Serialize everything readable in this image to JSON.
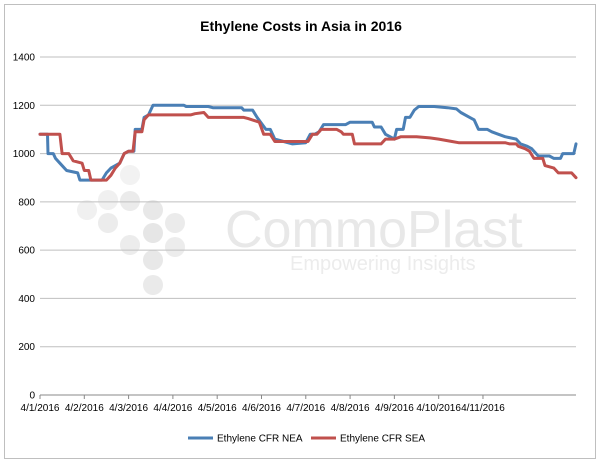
{
  "chart_data": {
    "type": "line",
    "title": "Ethylene Costs in Asia in 2016",
    "xlabel": "",
    "ylabel": "",
    "ylim": [
      0,
      1400
    ],
    "yticks": [
      0,
      200,
      400,
      600,
      800,
      1000,
      1200,
      1400
    ],
    "x_tick_labels": [
      "4/1/2016",
      "4/2/2016",
      "4/3/2016",
      "4/4/2016",
      "4/5/2016",
      "4/6/2016",
      "4/7/2016",
      "4/8/2016",
      "4/9/2016",
      "4/10/2016",
      "4/11/2016"
    ],
    "grid": true,
    "legend_position": "bottom",
    "series": [
      {
        "name": "Ethylene CFR NEA",
        "color": "#4a7fb5",
        "points": [
          [
            0,
            1080
          ],
          [
            0.1,
            1080
          ],
          [
            0.15,
            1080
          ],
          [
            0.17,
            1080
          ],
          [
            0.18,
            1000
          ],
          [
            0.3,
            1000
          ],
          [
            0.35,
            980
          ],
          [
            0.45,
            960
          ],
          [
            0.6,
            930
          ],
          [
            0.85,
            920
          ],
          [
            0.9,
            890
          ],
          [
            1.2,
            890
          ],
          [
            1.4,
            890
          ],
          [
            1.5,
            920
          ],
          [
            1.6,
            940
          ],
          [
            1.8,
            960
          ],
          [
            1.9,
            1000
          ],
          [
            2.0,
            1010
          ],
          [
            2.12,
            1010
          ],
          [
            2.15,
            1100
          ],
          [
            2.3,
            1100
          ],
          [
            2.35,
            1150
          ],
          [
            2.45,
            1160
          ],
          [
            2.55,
            1200
          ],
          [
            3.0,
            1200
          ],
          [
            3.25,
            1200
          ],
          [
            3.3,
            1195
          ],
          [
            3.8,
            1195
          ],
          [
            3.9,
            1190
          ],
          [
            4.55,
            1190
          ],
          [
            4.6,
            1180
          ],
          [
            4.8,
            1180
          ],
          [
            4.9,
            1150
          ],
          [
            5.1,
            1100
          ],
          [
            5.2,
            1100
          ],
          [
            5.3,
            1060
          ],
          [
            5.5,
            1050
          ],
          [
            5.7,
            1040
          ],
          [
            6.0,
            1045
          ],
          [
            6.1,
            1080
          ],
          [
            6.2,
            1080
          ],
          [
            6.3,
            1090
          ],
          [
            6.4,
            1120
          ],
          [
            6.9,
            1120
          ],
          [
            7.0,
            1130
          ],
          [
            7.5,
            1130
          ],
          [
            7.55,
            1110
          ],
          [
            7.7,
            1110
          ],
          [
            7.8,
            1080
          ],
          [
            7.9,
            1070
          ],
          [
            8.0,
            1060
          ],
          [
            8.05,
            1100
          ],
          [
            8.2,
            1100
          ],
          [
            8.25,
            1150
          ],
          [
            8.35,
            1150
          ],
          [
            8.45,
            1180
          ],
          [
            8.55,
            1195
          ],
          [
            8.9,
            1195
          ],
          [
            9.2,
            1190
          ],
          [
            9.4,
            1185
          ],
          [
            9.5,
            1170
          ],
          [
            9.7,
            1150
          ],
          [
            9.8,
            1140
          ],
          [
            9.9,
            1100
          ],
          [
            10.1,
            1100
          ],
          [
            10.2,
            1090
          ],
          [
            10.35,
            1080
          ],
          [
            10.5,
            1070
          ],
          [
            10.75,
            1060
          ],
          [
            10.85,
            1040
          ],
          [
            11.0,
            1030
          ],
          [
            11.1,
            1020
          ],
          [
            11.2,
            1000
          ],
          [
            11.25,
            990
          ],
          [
            11.5,
            990
          ],
          [
            11.6,
            980
          ],
          [
            11.75,
            980
          ],
          [
            11.8,
            1000
          ],
          [
            12.05,
            1000
          ],
          [
            12.1,
            1040
          ]
        ]
      },
      {
        "name": "Ethylene CFR SEA",
        "color": "#c0504d",
        "points": [
          [
            0,
            1080
          ],
          [
            0.45,
            1080
          ],
          [
            0.5,
            1000
          ],
          [
            0.65,
            1000
          ],
          [
            0.75,
            970
          ],
          [
            0.95,
            960
          ],
          [
            1.0,
            930
          ],
          [
            1.1,
            930
          ],
          [
            1.15,
            890
          ],
          [
            1.35,
            890
          ],
          [
            1.5,
            890
          ],
          [
            1.6,
            910
          ],
          [
            1.7,
            940
          ],
          [
            1.8,
            960
          ],
          [
            1.9,
            1000
          ],
          [
            2.0,
            1010
          ],
          [
            2.1,
            1010
          ],
          [
            2.15,
            1090
          ],
          [
            2.3,
            1090
          ],
          [
            2.35,
            1140
          ],
          [
            2.45,
            1160
          ],
          [
            3.4,
            1160
          ],
          [
            3.5,
            1165
          ],
          [
            3.7,
            1170
          ],
          [
            3.8,
            1150
          ],
          [
            4.6,
            1150
          ],
          [
            4.7,
            1145
          ],
          [
            4.95,
            1130
          ],
          [
            5.05,
            1080
          ],
          [
            5.2,
            1080
          ],
          [
            5.3,
            1050
          ],
          [
            5.7,
            1050
          ],
          [
            6.05,
            1050
          ],
          [
            6.15,
            1080
          ],
          [
            6.25,
            1080
          ],
          [
            6.3,
            1090
          ],
          [
            6.35,
            1100
          ],
          [
            6.7,
            1100
          ],
          [
            6.8,
            1090
          ],
          [
            6.85,
            1080
          ],
          [
            7.05,
            1080
          ],
          [
            7.1,
            1040
          ],
          [
            7.7,
            1040
          ],
          [
            7.8,
            1060
          ],
          [
            8.0,
            1060
          ],
          [
            8.15,
            1070
          ],
          [
            8.5,
            1070
          ],
          [
            8.8,
            1065
          ],
          [
            9.0,
            1060
          ],
          [
            9.3,
            1050
          ],
          [
            9.45,
            1045
          ],
          [
            10.5,
            1045
          ],
          [
            10.6,
            1040
          ],
          [
            10.75,
            1040
          ],
          [
            10.8,
            1030
          ],
          [
            10.95,
            1020
          ],
          [
            11.05,
            1010
          ],
          [
            11.15,
            980
          ],
          [
            11.35,
            980
          ],
          [
            11.4,
            950
          ],
          [
            11.6,
            940
          ],
          [
            11.7,
            920
          ],
          [
            12.0,
            920
          ],
          [
            12.1,
            900
          ]
        ]
      }
    ]
  },
  "watermark": {
    "brand": "CommoPlast",
    "tagline": "Empowering Insights"
  }
}
